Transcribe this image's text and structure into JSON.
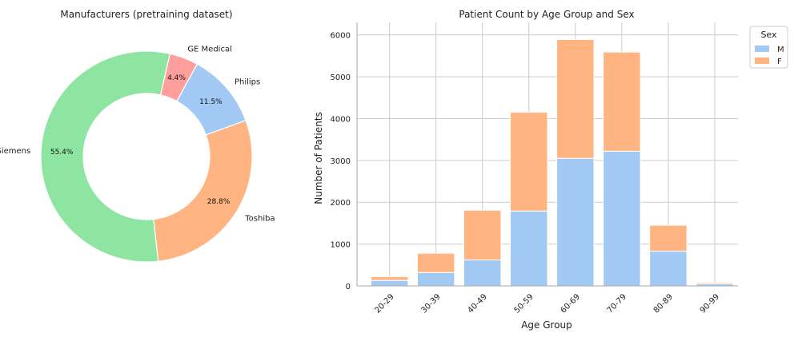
{
  "chart_data": [
    {
      "type": "pie",
      "variant": "donut",
      "title": "Manufacturers (pretraining dataset)",
      "slices": [
        {
          "label": "Philips",
          "value": 11.5,
          "pct_label": "11.5%",
          "color": "#a1c9f4"
        },
        {
          "label": "GE Medical",
          "value": 4.4,
          "pct_label": "4.4%",
          "color": "#ff9f9b"
        },
        {
          "label": "Siemens",
          "value": 55.4,
          "pct_label": "55.4%",
          "color": "#8de5a1"
        },
        {
          "label": "Toshiba",
          "value": 28.8,
          "pct_label": "28.8%",
          "color": "#ffb482"
        }
      ]
    },
    {
      "type": "bar",
      "stacked": true,
      "title": "Patient Count by Age Group and Sex",
      "xlabel": "Age Group",
      "ylabel": "Number of Patients",
      "categories": [
        "20-29",
        "30-39",
        "40-49",
        "50-59",
        "60-69",
        "70-79",
        "80-89",
        "90-99"
      ],
      "series": [
        {
          "name": "M",
          "color": "#a1c9f4",
          "values": [
            130,
            320,
            620,
            1790,
            3050,
            3220,
            830,
            50
          ]
        },
        {
          "name": "F",
          "color": "#ffb482",
          "values": [
            90,
            460,
            1190,
            2360,
            2840,
            2370,
            620,
            30
          ]
        }
      ],
      "ylim": [
        0,
        6300
      ],
      "yticks": [
        0,
        1000,
        2000,
        3000,
        4000,
        5000,
        6000
      ],
      "grid": true,
      "legend": {
        "title": "Sex",
        "position": "top-right"
      }
    }
  ]
}
